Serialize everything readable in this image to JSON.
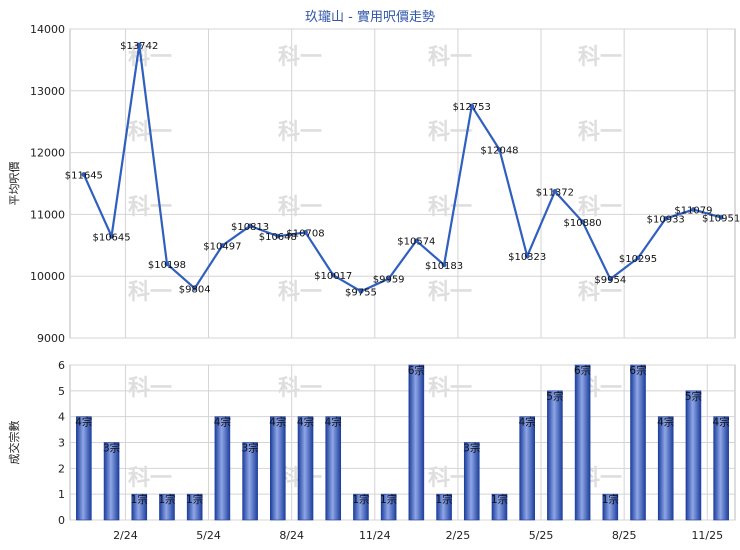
{
  "chart_data": [
    {
      "type": "line",
      "title": "玖瓏山 - 實用呎價走勢",
      "ylabel": "平均呎價",
      "ylim": [
        9000,
        14000
      ],
      "yticks": [
        9000,
        10000,
        11000,
        12000,
        13000,
        14000
      ],
      "x_tick_labels": [
        "2/24",
        "5/24",
        "8/24",
        "11/24",
        "2/25",
        "5/25",
        "8/25",
        "11/25"
      ],
      "x_tick_positions": [
        2,
        5,
        8,
        11,
        14,
        17,
        20,
        23
      ],
      "series": [
        {
          "values": [
            11645,
            10645,
            13742,
            10198,
            9804,
            10497,
            10813,
            10648,
            10708,
            10017,
            9755,
            9959,
            10574,
            10183,
            12753,
            12048,
            10323,
            11372,
            10880,
            9954,
            10295,
            10933,
            11079,
            10951
          ],
          "labels": [
            "$11645",
            "$10645",
            "$13742",
            "$10198",
            "$9804",
            "$10497",
            "$10813",
            "$10648",
            "$10708",
            "$10017",
            "$9755",
            "$9959",
            "$10574",
            "$10183",
            "$12753",
            "$12048",
            "$10323",
            "$11372",
            "$10880",
            "$9954",
            "$10295",
            "$10933",
            "$11079",
            "$10951"
          ],
          "color": "#2f5fbf"
        }
      ],
      "grid": true
    },
    {
      "type": "bar",
      "ylabel": "成交宗數",
      "ylim": [
        0,
        6
      ],
      "yticks": [
        0,
        1,
        2,
        3,
        4,
        5,
        6
      ],
      "x_tick_labels": [
        "2/24",
        "5/24",
        "8/24",
        "11/24",
        "2/25",
        "5/25",
        "8/25",
        "11/25"
      ],
      "x_tick_positions": [
        2,
        5,
        8,
        11,
        14,
        17,
        20,
        23
      ],
      "values": [
        4,
        3,
        1,
        1,
        1,
        4,
        3,
        4,
        4,
        4,
        1,
        1,
        6,
        1,
        3,
        1,
        4,
        5,
        6,
        1,
        6,
        4,
        5,
        4
      ],
      "labels": [
        "4宗",
        "3宗",
        "1宗",
        "1宗",
        "1宗",
        "4宗",
        "3宗",
        "4宗",
        "4宗",
        "4宗",
        "1宗",
        "1宗",
        "6宗",
        "1宗",
        "3宗",
        "1宗",
        "4宗",
        "5宗",
        "6宗",
        "1宗",
        "6宗",
        "4宗",
        "5宗",
        "4宗"
      ],
      "color": "#3b5fc4",
      "grid": true
    }
  ],
  "watermark": "科一"
}
